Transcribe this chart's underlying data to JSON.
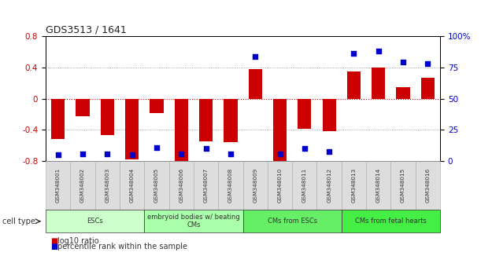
{
  "title": "GDS3513 / 1641",
  "samples": [
    "GSM348001",
    "GSM348002",
    "GSM348003",
    "GSM348004",
    "GSM348005",
    "GSM348006",
    "GSM348007",
    "GSM348008",
    "GSM348009",
    "GSM348010",
    "GSM348011",
    "GSM348012",
    "GSM348013",
    "GSM348014",
    "GSM348015",
    "GSM348016"
  ],
  "log10_ratio": [
    -0.52,
    -0.22,
    -0.47,
    -0.78,
    -0.18,
    -0.8,
    -0.55,
    -0.56,
    0.38,
    -0.82,
    -0.38,
    -0.42,
    0.35,
    0.4,
    0.15,
    0.27
  ],
  "percentile_rank": [
    5,
    6,
    6,
    5,
    11,
    6,
    10,
    6,
    84,
    6,
    10,
    8,
    86,
    88,
    79,
    78
  ],
  "bar_color": "#cc0000",
  "dot_color": "#0000cc",
  "ylim_left": [
    -0.8,
    0.8
  ],
  "ylim_right": [
    0,
    100
  ],
  "yticks_left": [
    -0.8,
    -0.4,
    0.0,
    0.4,
    0.8
  ],
  "ytick_labels_left": [
    "-0.8",
    "-0.4",
    "0",
    "0.4",
    "0.8"
  ],
  "yticks_right": [
    0,
    25,
    50,
    75,
    100
  ],
  "ytick_labels_right": [
    "0",
    "25",
    "50",
    "75",
    "100%"
  ],
  "dotted_lines": [
    -0.8,
    -0.4,
    0.0,
    0.4,
    0.8
  ],
  "cell_type_groups": [
    {
      "label": "ESCs",
      "start": 0,
      "end": 3,
      "color": "#ccffcc"
    },
    {
      "label": "embryoid bodies w/ beating\nCMs",
      "start": 4,
      "end": 7,
      "color": "#aaffaa"
    },
    {
      "label": "CMs from ESCs",
      "start": 8,
      "end": 11,
      "color": "#66ee66"
    },
    {
      "label": "CMs from fetal hearts",
      "start": 12,
      "end": 15,
      "color": "#44ee44"
    }
  ],
  "cell_type_label": "cell type",
  "legend_red": "log10 ratio",
  "legend_blue": "percentile rank within the sample",
  "tick_box_color": "#dddddd",
  "tick_box_edge": "#aaaaaa"
}
